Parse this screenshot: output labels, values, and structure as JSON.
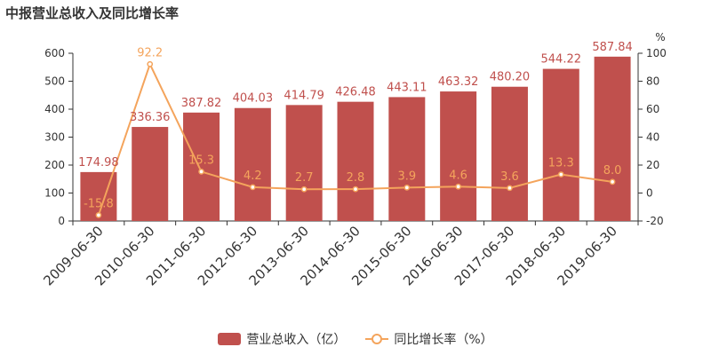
{
  "title": "中报营业总收入及同比增长率",
  "colors": {
    "bar": "#c0504d",
    "line": "#f4a45c",
    "axis": "#333333",
    "text": "#333333"
  },
  "legend": {
    "bar_label": "营业总收入（亿）",
    "line_label": "同比增长率（%）"
  },
  "chart_data": {
    "type": "bar",
    "title": "中报营业总收入及同比增长率",
    "categories": [
      "2009-06-30",
      "2010-06-30",
      "2011-06-30",
      "2012-06-30",
      "2013-06-30",
      "2014-06-30",
      "2015-06-30",
      "2016-06-30",
      "2017-06-30",
      "2018-06-30",
      "2019-06-30"
    ],
    "series": [
      {
        "name": "营业总收入（亿）",
        "type": "bar",
        "axis": "left",
        "values": [
          174.98,
          336.36,
          387.82,
          404.03,
          414.79,
          426.48,
          443.11,
          463.32,
          480.2,
          544.22,
          587.84
        ],
        "labels": [
          "174.98",
          "336.36",
          "387.82",
          "404.03",
          "414.79",
          "426.48",
          "443.11",
          "463.32",
          "480.20",
          "544.22",
          "587.84"
        ]
      },
      {
        "name": "同比增长率（%）",
        "type": "line",
        "axis": "right",
        "values": [
          -15.8,
          92.2,
          15.3,
          4.2,
          2.7,
          2.8,
          3.9,
          4.6,
          3.6,
          13.3,
          8.0
        ],
        "labels": [
          "-15.8",
          "92.2",
          "15.3",
          "4.2",
          "2.7",
          "2.8",
          "3.9",
          "4.6",
          "3.6",
          "13.3",
          "8.0"
        ]
      }
    ],
    "y_left": {
      "min": 0,
      "max": 600,
      "ticks": [
        0,
        100,
        200,
        300,
        400,
        500,
        600
      ]
    },
    "y_right": {
      "min": -20,
      "max": 100,
      "ticks": [
        -20,
        0,
        20,
        40,
        60,
        80,
        100
      ],
      "unit": "%"
    },
    "grid": false,
    "legend_position": "bottom-center"
  }
}
